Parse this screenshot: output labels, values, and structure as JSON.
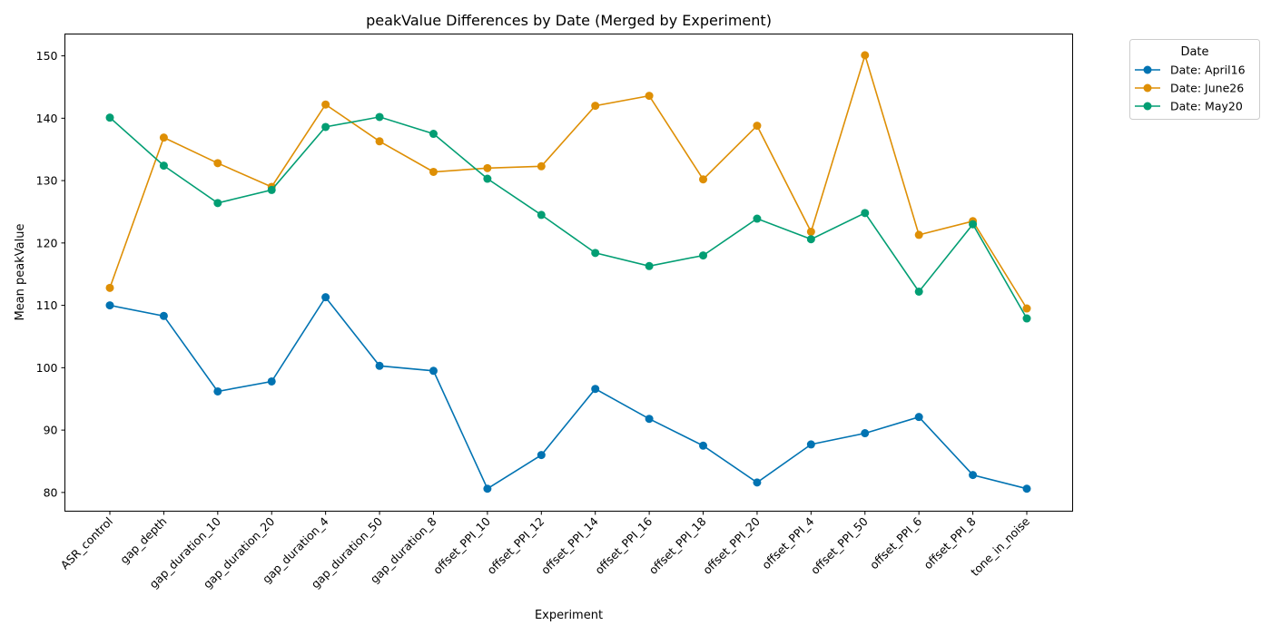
{
  "chart_data": {
    "type": "line",
    "title": "peakValue Differences by Date (Merged by Experiment)",
    "xlabel": "Experiment",
    "ylabel": "Mean peakValue",
    "ylim": [
      77,
      153.5
    ],
    "yticks": [
      80,
      90,
      100,
      110,
      120,
      130,
      140,
      150
    ],
    "grid": false,
    "legend_title": "Date",
    "legend_position": "outside-top-right",
    "categories": [
      "ASR_control",
      "gap_depth",
      "gap_duration_10",
      "gap_duration_20",
      "gap_duration_4",
      "gap_duration_50",
      "gap_duration_8",
      "offset_PPI_10",
      "offset_PPI_12",
      "offset_PPI_14",
      "offset_PPI_16",
      "offset_PPI_18",
      "offset_PPI_20",
      "offset_PPI_4",
      "offset_PPI_50",
      "offset_PPI_6",
      "offset_PPI_8",
      "tone_in_noise"
    ],
    "series": [
      {
        "name": "Date: April16",
        "color": "#0173b2",
        "values": [
          110.0,
          108.3,
          96.2,
          97.8,
          111.3,
          100.3,
          99.5,
          80.6,
          86.0,
          96.6,
          91.8,
          87.5,
          81.6,
          87.7,
          89.5,
          92.1,
          82.8,
          80.6
        ]
      },
      {
        "name": "Date: June26",
        "color": "#de8f05",
        "values": [
          112.8,
          136.9,
          132.8,
          129.0,
          142.2,
          136.3,
          131.4,
          132.0,
          132.3,
          142.0,
          143.6,
          130.2,
          138.8,
          121.8,
          150.1,
          121.3,
          123.5,
          109.5
        ]
      },
      {
        "name": "Date: May20",
        "color": "#029e73",
        "values": [
          140.1,
          132.4,
          126.4,
          128.5,
          138.6,
          140.2,
          137.5,
          130.3,
          124.5,
          118.4,
          116.3,
          118.0,
          123.9,
          120.6,
          124.8,
          112.2,
          123.0,
          107.9
        ]
      }
    ]
  }
}
